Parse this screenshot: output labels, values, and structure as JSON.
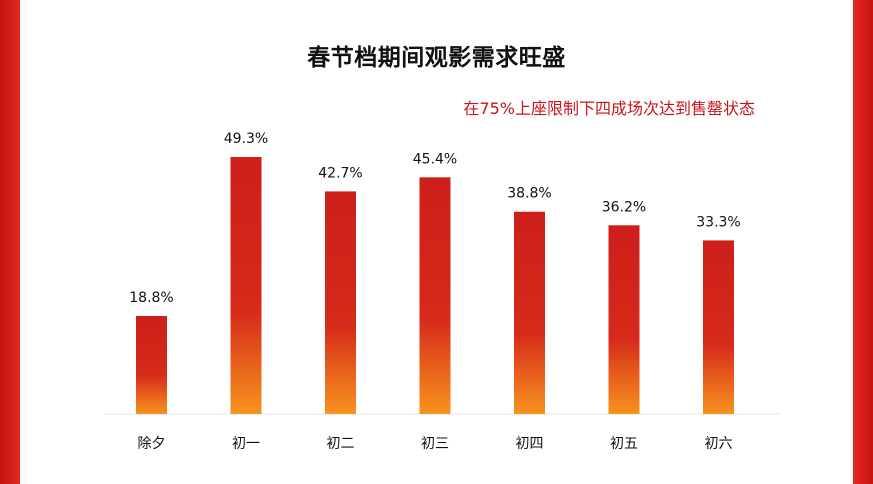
{
  "colors": {
    "bar_top": "#cc1f1a",
    "bar_bottom": "#f7931e",
    "border": "#d41c15",
    "subtitle": "#c4161c"
  },
  "chart_data": {
    "type": "bar",
    "title": "春节档期间观影需求旺盛",
    "subtitle": "在75%上座限制下四成场次达到售罄状态",
    "categories": [
      "除夕",
      "初一",
      "初二",
      "初三",
      "初四",
      "初五",
      "初六"
    ],
    "values": [
      18.8,
      49.3,
      42.7,
      45.4,
      38.8,
      36.2,
      33.3
    ],
    "value_labels": [
      "18.8%",
      "49.3%",
      "42.7%",
      "45.4%",
      "38.8%",
      "36.2%",
      "33.3%"
    ],
    "unit": "%",
    "ylim": [
      0,
      49.3
    ],
    "grid": false,
    "legend": "none"
  }
}
